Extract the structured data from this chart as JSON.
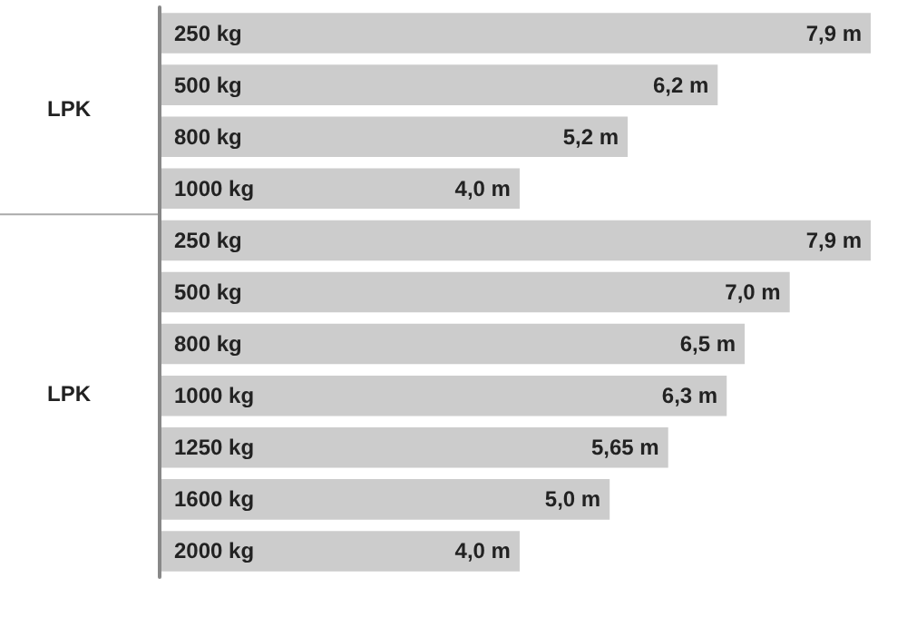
{
  "chart_data": {
    "type": "bar",
    "orientation": "horizontal",
    "categories": [
      "250 kg",
      "500 kg",
      "800 kg",
      "1000 kg",
      "250 kg",
      "500 kg",
      "800 kg",
      "1000 kg",
      "1250 kg",
      "1600 kg",
      "2000 kg"
    ],
    "values": [
      7.9,
      6.2,
      5.2,
      4.0,
      7.9,
      7.0,
      6.5,
      6.3,
      5.65,
      5.0,
      4.0
    ],
    "value_labels": [
      "7,9 m",
      "6,2 m",
      "5,2 m",
      "4,0 m",
      "7,9 m",
      "7,0 m",
      "6,5 m",
      "6,3 m",
      "5,65 m",
      "5,0 m",
      "4,0 m"
    ],
    "color": "#cccccc",
    "annotations": [
      "LPK",
      "LPK"
    ]
  }
}
